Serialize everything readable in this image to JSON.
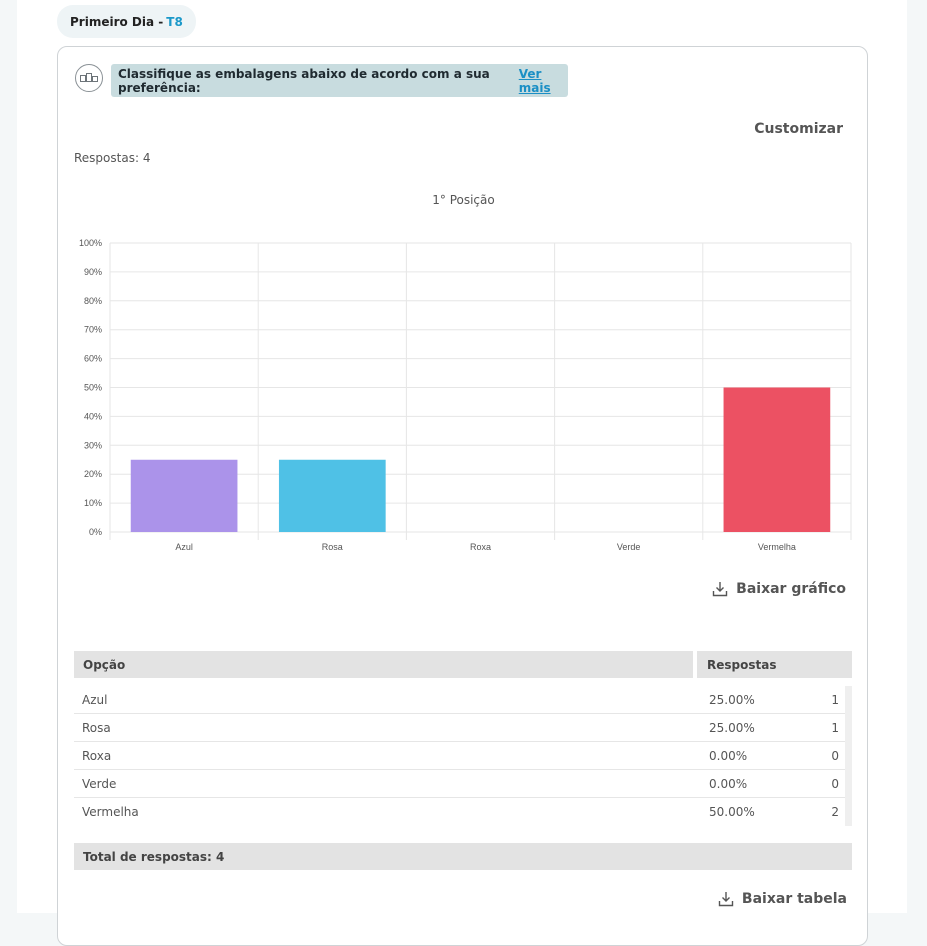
{
  "day_tab": {
    "label": "Primeiro Dia -",
    "code": "T8"
  },
  "question": {
    "text": "Classifique as embalagens abaixo de acordo com a sua preferência:",
    "more_link": "Ver mais"
  },
  "customize_label": "Customizar",
  "responses_label": "Respostas: 4",
  "download_chart_label": "Baixar gráfico",
  "download_table_label": "Baixar tabela",
  "chart_data": {
    "type": "bar",
    "title": "1° Posição",
    "categories": [
      "Azul",
      "Rosa",
      "Roxa",
      "Verde",
      "Vermelha"
    ],
    "values": [
      25,
      25,
      0,
      0,
      50
    ],
    "colors": [
      "#ab93ea",
      "#4fc1e6",
      "#b07ad9",
      "#6fcf8f",
      "#ec5163"
    ],
    "ylim": [
      0,
      100
    ],
    "yticks": [
      "0%",
      "10%",
      "20%",
      "30%",
      "40%",
      "50%",
      "60%",
      "70%",
      "80%",
      "90%",
      "100%"
    ],
    "grid": true,
    "legend": "none"
  },
  "table": {
    "headers": {
      "option": "Opção",
      "responses": "Respostas"
    },
    "rows": [
      {
        "option": "Azul",
        "percent": "25.00%",
        "count": "1"
      },
      {
        "option": "Rosa",
        "percent": "25.00%",
        "count": "1"
      },
      {
        "option": "Roxa",
        "percent": "0.00%",
        "count": "0"
      },
      {
        "option": "Verde",
        "percent": "0.00%",
        "count": "0"
      },
      {
        "option": "Vermelha",
        "percent": "50.00%",
        "count": "2"
      }
    ],
    "total_label": "Total de respostas: 4"
  }
}
